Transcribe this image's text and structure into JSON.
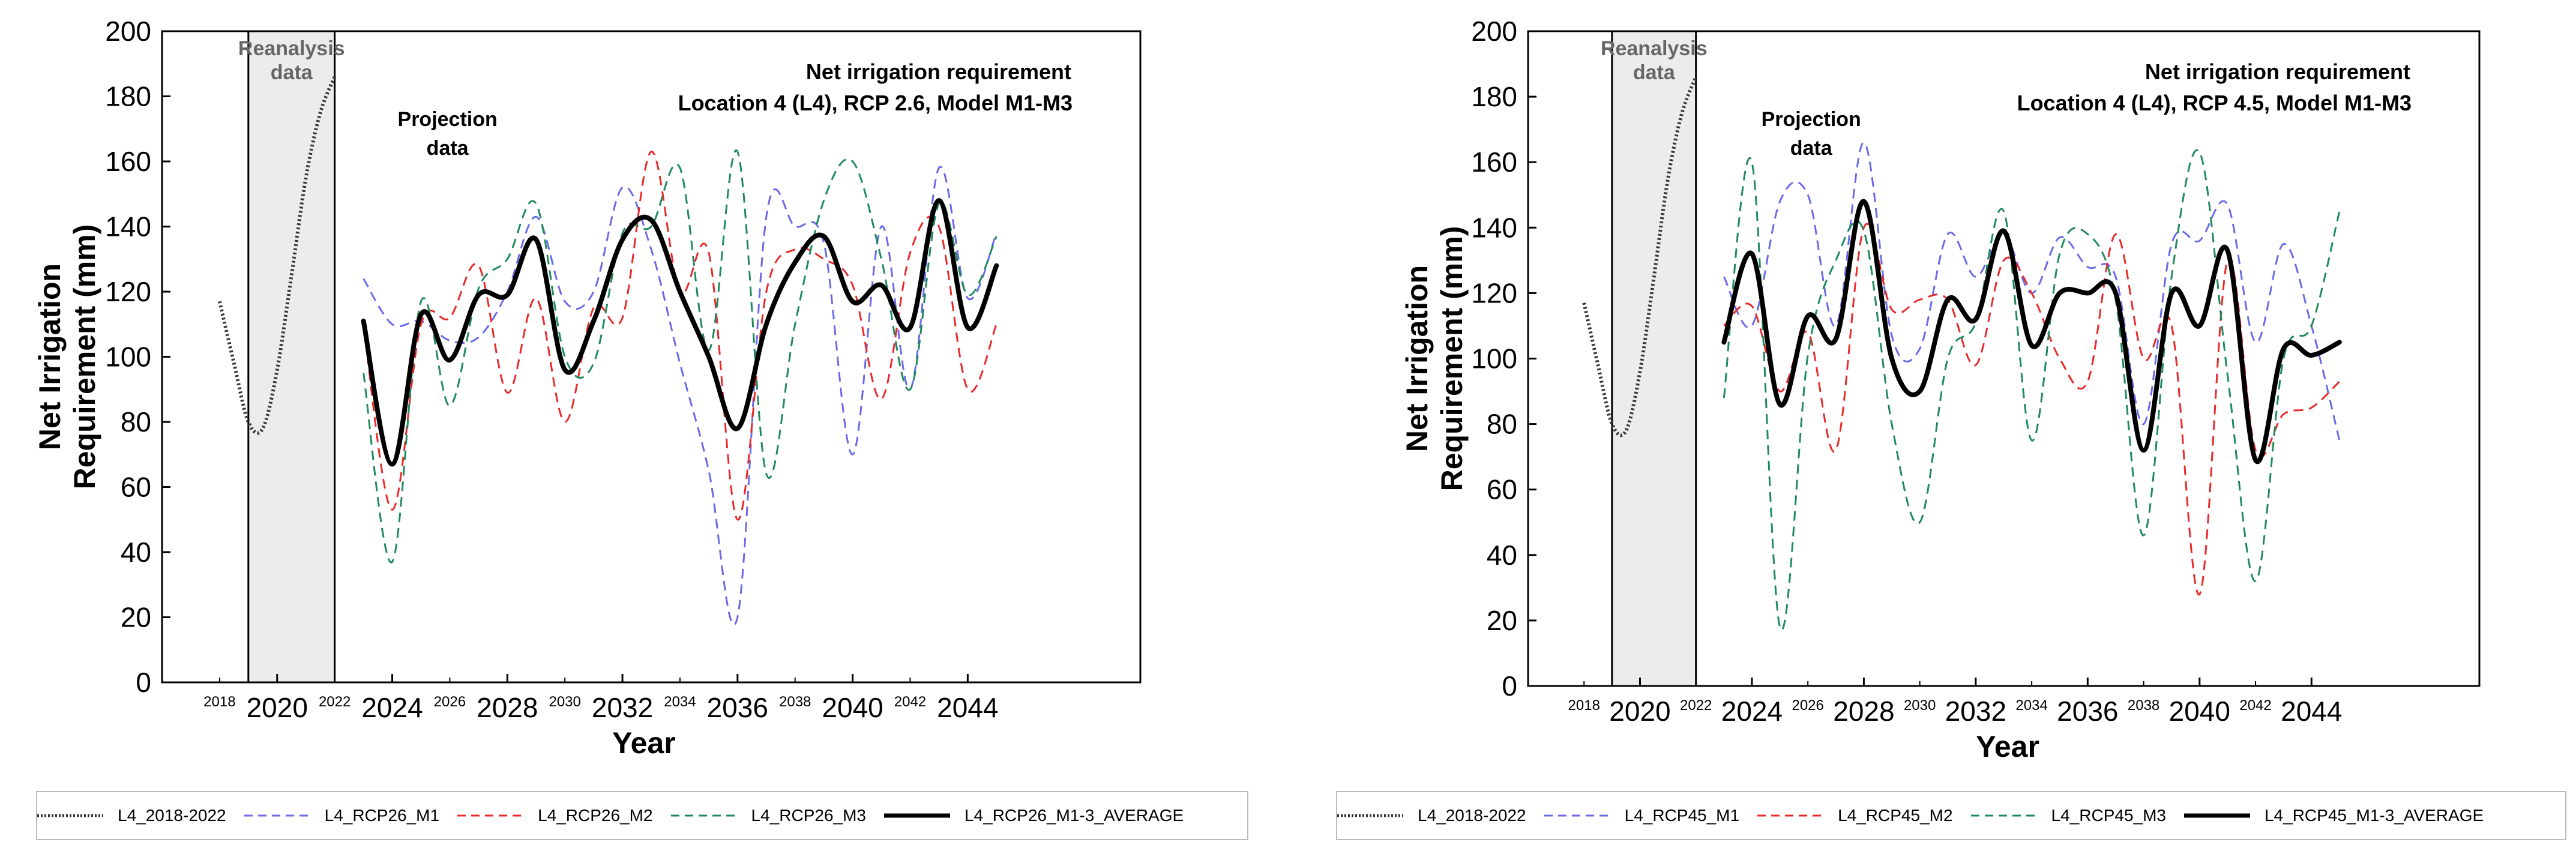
{
  "charts": [
    {
      "title_line1": "Net irrigation requirement",
      "title_line2": "Location 4 (L4), RCP 2.6, Model M1-M3",
      "ylabel_line1": "Net Irrigation",
      "ylabel_line2": "Requirement (mm)",
      "xlabel": "Year",
      "reanalysis_label_1": "Reanalysis",
      "reanalysis_label_2": "data",
      "projection_label_1": "Projection",
      "projection_label_2": "data",
      "legend": [
        "L4_2018-2022",
        "L4_RCP26_M1",
        "L4_RCP26_M2",
        "L4_RCP26_M3",
        "L4_RCP26_M1-3_AVERAGE"
      ]
    },
    {
      "title_line1": "Net irrigation requirement",
      "title_line2": "Location 4 (L4), RCP 4.5, Model M1-M3",
      "ylabel_line1": "Net Irrigation",
      "ylabel_line2": "Requirement (mm)",
      "xlabel": "Year",
      "reanalysis_label_1": "Reanalysis",
      "reanalysis_label_2": "data",
      "projection_label_1": "Projection",
      "projection_label_2": "data",
      "legend": [
        "L4_2018-2022",
        "L4_RCP45_M1",
        "L4_RCP45_M2",
        "L4_RCP45_M3",
        "L4_RCP45_M1-3_AVERAGE"
      ]
    }
  ],
  "chart_data": [
    {
      "type": "line",
      "title": "Net irrigation requirement — Location 4 (L4), RCP 2.6, Model M1-M3",
      "xlabel": "Year",
      "ylabel": "Net Irrigation Requirement (mm)",
      "xlim": [
        2016,
        2050
      ],
      "ylim": [
        0,
        200
      ],
      "yticks": [
        0,
        20,
        40,
        60,
        80,
        100,
        120,
        140,
        160,
        180,
        200
      ],
      "xticks_major": [
        "2020",
        "2024",
        "2028",
        "2032",
        "2036",
        "2040",
        "2044"
      ],
      "xticks_minor": [
        "2018",
        "2022",
        "2026",
        "2030",
        "2034",
        "2038",
        "2042"
      ],
      "reanalysis_range": [
        2019,
        2022
      ],
      "series": [
        {
          "name": "L4_2018-2022",
          "color": "#333333",
          "style": "dotted",
          "x": [
            2018,
            2018.5,
            2019,
            2019.5,
            2020,
            2020.5,
            2021,
            2021.5,
            2022
          ],
          "values": [
            117,
            98,
            80,
            78,
            96,
            125,
            155,
            175,
            186
          ]
        },
        {
          "name": "L4_RCP26_M1",
          "color": "#6a6ae8",
          "style": "dashed",
          "x": [
            2023,
            2024,
            2025,
            2026,
            2027,
            2028,
            2029,
            2030,
            2031,
            2032,
            2033,
            2034,
            2035,
            2036,
            2037,
            2038,
            2039,
            2040,
            2041,
            2042,
            2043,
            2044,
            2045
          ],
          "values": [
            124,
            110,
            111,
            105,
            106,
            120,
            143,
            117,
            120,
            152,
            133,
            98,
            65,
            20,
            143,
            140,
            135,
            70,
            140,
            90,
            158,
            118,
            138
          ]
        },
        {
          "name": "L4_RCP26_M2",
          "color": "#e82a2a",
          "style": "dashed",
          "x": [
            2023,
            2024,
            2025,
            2026,
            2027,
            2028,
            2029,
            2030,
            2031,
            2032,
            2033,
            2034,
            2035,
            2036,
            2037,
            2038,
            2039,
            2040,
            2041,
            2042,
            2043,
            2044,
            2045
          ],
          "values": [
            110,
            53,
            110,
            112,
            128,
            89,
            118,
            80,
            115,
            112,
            163,
            120,
            132,
            50,
            120,
            133,
            130,
            122,
            87,
            132,
            140,
            90,
            110
          ]
        },
        {
          "name": "L4_RCP26_M3",
          "color": "#1f8a5c",
          "style": "dashed",
          "x": [
            2023,
            2024,
            2025,
            2026,
            2027,
            2028,
            2029,
            2030,
            2031,
            2032,
            2033,
            2034,
            2035,
            2036,
            2037,
            2038,
            2039,
            2040,
            2041,
            2042,
            2043,
            2044,
            2045
          ],
          "values": [
            95,
            37,
            117,
            85,
            121,
            130,
            147,
            100,
            98,
            138,
            140,
            158,
            102,
            163,
            64,
            110,
            148,
            160,
            130,
            90,
            147,
            119,
            137
          ]
        },
        {
          "name": "L4_RCP26_M1-3_AVERAGE",
          "color": "#000000",
          "style": "solid",
          "x": [
            2023,
            2024,
            2025,
            2026,
            2027,
            2028,
            2029,
            2030,
            2031,
            2032,
            2033,
            2034,
            2035,
            2036,
            2037,
            2038,
            2039,
            2040,
            2041,
            2042,
            2043,
            2044,
            2045
          ],
          "values": [
            111,
            67,
            113,
            99,
            119,
            119,
            136,
            96,
            111,
            136,
            142,
            120,
            100,
            78,
            110,
            129,
            137,
            117,
            122,
            109,
            148,
            109,
            128
          ]
        }
      ]
    },
    {
      "type": "line",
      "title": "Net irrigation requirement — Location 4 (L4), RCP 4.5, Model M1-M3",
      "xlabel": "Year",
      "ylabel": "Net Irrigation Requirement (mm)",
      "xlim": [
        2016,
        2050
      ],
      "ylim": [
        0,
        200
      ],
      "yticks": [
        0,
        20,
        40,
        60,
        80,
        100,
        120,
        140,
        160,
        180,
        200
      ],
      "xticks_major": [
        "2020",
        "2024",
        "2028",
        "2032",
        "2036",
        "2040",
        "2044"
      ],
      "xticks_minor": [
        "2018",
        "2022",
        "2026",
        "2030",
        "2034",
        "2038",
        "2042"
      ],
      "reanalysis_range": [
        2019,
        2022
      ],
      "series": [
        {
          "name": "L4_2018-2022",
          "color": "#333333",
          "style": "dotted",
          "x": [
            2018,
            2018.5,
            2019,
            2019.5,
            2020,
            2020.5,
            2021,
            2021.5,
            2022
          ],
          "values": [
            117,
            98,
            80,
            78,
            96,
            125,
            155,
            175,
            186
          ]
        },
        {
          "name": "L4_RCP45_M1",
          "color": "#6a6ae8",
          "style": "dashed",
          "x": [
            2023,
            2024,
            2025,
            2026,
            2027,
            2028,
            2029,
            2030,
            2031,
            2032,
            2033,
            2034,
            2035,
            2036,
            2037,
            2038,
            2039,
            2040,
            2041,
            2042,
            2043,
            2044,
            2045
          ],
          "values": [
            125,
            110,
            148,
            150,
            110,
            166,
            107,
            103,
            138,
            125,
            138,
            120,
            137,
            128,
            125,
            80,
            135,
            136,
            147,
            105,
            135,
            110,
            75
          ]
        },
        {
          "name": "L4_RCP45_M2",
          "color": "#e82a2a",
          "style": "dashed",
          "x": [
            2023,
            2024,
            2025,
            2026,
            2027,
            2028,
            2029,
            2030,
            2031,
            2032,
            2033,
            2034,
            2035,
            2036,
            2037,
            2038,
            2039,
            2040,
            2041,
            2042,
            2043,
            2044,
            2045
          ],
          "values": [
            110,
            116,
            90,
            108,
            72,
            140,
            115,
            118,
            118,
            98,
            130,
            120,
            100,
            93,
            138,
            100,
            110,
            28,
            130,
            72,
            83,
            85,
            93
          ]
        },
        {
          "name": "L4_RCP45_M3",
          "color": "#1f8a5c",
          "style": "dashed",
          "x": [
            2023,
            2024,
            2025,
            2026,
            2027,
            2028,
            2029,
            2030,
            2031,
            2032,
            2033,
            2034,
            2035,
            2036,
            2037,
            2038,
            2039,
            2040,
            2041,
            2042,
            2043,
            2044,
            2045
          ],
          "values": [
            88,
            160,
            18,
            101,
            130,
            139,
            80,
            50,
            100,
            111,
            145,
            75,
            132,
            138,
            118,
            46,
            125,
            163,
            95,
            32,
            100,
            110,
            145
          ]
        },
        {
          "name": "L4_RCP45_M1-3_AVERAGE",
          "color": "#000000",
          "style": "solid",
          "x": [
            2023,
            2024,
            2025,
            2026,
            2027,
            2028,
            2029,
            2030,
            2031,
            2032,
            2033,
            2034,
            2035,
            2036,
            2037,
            2038,
            2039,
            2040,
            2041,
            2042,
            2043,
            2044,
            2045
          ],
          "values": [
            105,
            132,
            86,
            113,
            106,
            148,
            100,
            90,
            118,
            112,
            139,
            104,
            120,
            120,
            120,
            72,
            120,
            110,
            133,
            69,
            103,
            101,
            105
          ]
        }
      ]
    }
  ]
}
